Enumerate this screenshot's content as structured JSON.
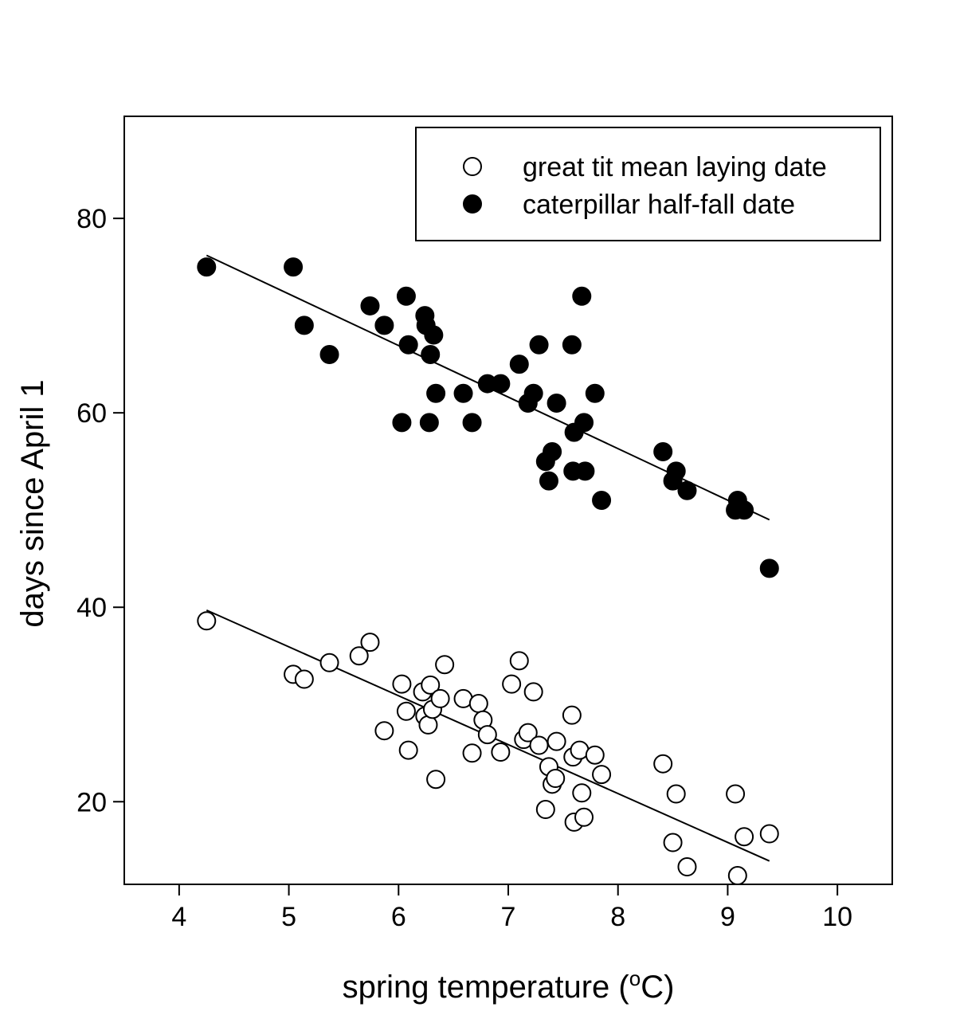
{
  "chart_data": {
    "type": "scatter",
    "xlabel": "spring temperature (",
    "xlabel_sup": "o",
    "xlabel_end": "C)",
    "ylabel": "days since April 1",
    "xlim": [
      3.5,
      10.5
    ],
    "ylim": [
      11.5,
      90.5
    ],
    "xticks": [
      4,
      5,
      6,
      7,
      8,
      9,
      10
    ],
    "yticks": [
      20,
      40,
      60,
      80
    ],
    "grid": false,
    "legend_position": "top-right",
    "series": [
      {
        "name": "great tit mean laying date",
        "marker": "open-circle",
        "color": "#000000",
        "trend": [
          [
            4.25,
            39.7
          ],
          [
            9.38,
            13.9
          ]
        ],
        "points": [
          [
            4.25,
            38.6
          ],
          [
            5.04,
            33.1
          ],
          [
            5.14,
            32.6
          ],
          [
            5.37,
            34.3
          ],
          [
            5.64,
            35.0
          ],
          [
            5.74,
            36.4
          ],
          [
            5.87,
            27.3
          ],
          [
            6.03,
            32.1
          ],
          [
            6.07,
            29.3
          ],
          [
            6.09,
            25.3
          ],
          [
            6.22,
            31.3
          ],
          [
            6.24,
            28.8
          ],
          [
            6.27,
            27.9
          ],
          [
            6.29,
            32.0
          ],
          [
            6.31,
            29.5
          ],
          [
            6.34,
            22.3
          ],
          [
            6.38,
            30.6
          ],
          [
            6.42,
            34.1
          ],
          [
            6.59,
            30.6
          ],
          [
            6.67,
            25.0
          ],
          [
            6.73,
            30.1
          ],
          [
            6.77,
            28.4
          ],
          [
            6.81,
            26.9
          ],
          [
            6.93,
            25.1
          ],
          [
            7.03,
            32.1
          ],
          [
            7.1,
            34.5
          ],
          [
            7.14,
            26.4
          ],
          [
            7.18,
            27.1
          ],
          [
            7.23,
            31.3
          ],
          [
            7.28,
            25.8
          ],
          [
            7.34,
            19.2
          ],
          [
            7.37,
            23.6
          ],
          [
            7.4,
            21.8
          ],
          [
            7.43,
            22.4
          ],
          [
            7.44,
            26.2
          ],
          [
            7.58,
            28.9
          ],
          [
            7.59,
            24.6
          ],
          [
            7.6,
            17.9
          ],
          [
            7.65,
            25.3
          ],
          [
            7.67,
            20.9
          ],
          [
            7.69,
            18.4
          ],
          [
            7.79,
            24.8
          ],
          [
            7.85,
            22.8
          ],
          [
            8.41,
            23.9
          ],
          [
            8.5,
            15.8
          ],
          [
            8.53,
            20.8
          ],
          [
            8.63,
            13.3
          ],
          [
            9.07,
            20.8
          ],
          [
            9.09,
            12.4
          ],
          [
            9.15,
            16.4
          ],
          [
            9.38,
            16.7
          ]
        ]
      },
      {
        "name": "caterpillar half-fall date",
        "marker": "filled-circle",
        "color": "#000000",
        "trend": [
          [
            4.25,
            76.2
          ],
          [
            9.38,
            49.0
          ]
        ],
        "points": [
          [
            4.25,
            75.0
          ],
          [
            5.04,
            75.0
          ],
          [
            5.14,
            69.0
          ],
          [
            5.37,
            66.0
          ],
          [
            5.74,
            71.0
          ],
          [
            5.87,
            69.0
          ],
          [
            6.03,
            59.0
          ],
          [
            6.07,
            72.0
          ],
          [
            6.09,
            67.0
          ],
          [
            6.24,
            70.0
          ],
          [
            6.25,
            69.0
          ],
          [
            6.28,
            59.0
          ],
          [
            6.29,
            66.0
          ],
          [
            6.32,
            68.0
          ],
          [
            6.34,
            62.0
          ],
          [
            6.59,
            62.0
          ],
          [
            6.67,
            59.0
          ],
          [
            6.81,
            63.0
          ],
          [
            6.93,
            63.0
          ],
          [
            7.1,
            65.0
          ],
          [
            7.18,
            61.0
          ],
          [
            7.23,
            62.0
          ],
          [
            7.28,
            67.0
          ],
          [
            7.34,
            55.0
          ],
          [
            7.37,
            53.0
          ],
          [
            7.4,
            56.0
          ],
          [
            7.44,
            61.0
          ],
          [
            7.58,
            67.0
          ],
          [
            7.59,
            54.0
          ],
          [
            7.6,
            58.0
          ],
          [
            7.67,
            72.0
          ],
          [
            7.69,
            59.0
          ],
          [
            7.7,
            54.0
          ],
          [
            7.79,
            62.0
          ],
          [
            7.85,
            51.0
          ],
          [
            8.41,
            56.0
          ],
          [
            8.5,
            53.0
          ],
          [
            8.53,
            54.0
          ],
          [
            8.63,
            52.0
          ],
          [
            9.07,
            50.0
          ],
          [
            9.09,
            51.0
          ],
          [
            9.15,
            50.0
          ],
          [
            9.38,
            44.0
          ]
        ]
      }
    ]
  }
}
